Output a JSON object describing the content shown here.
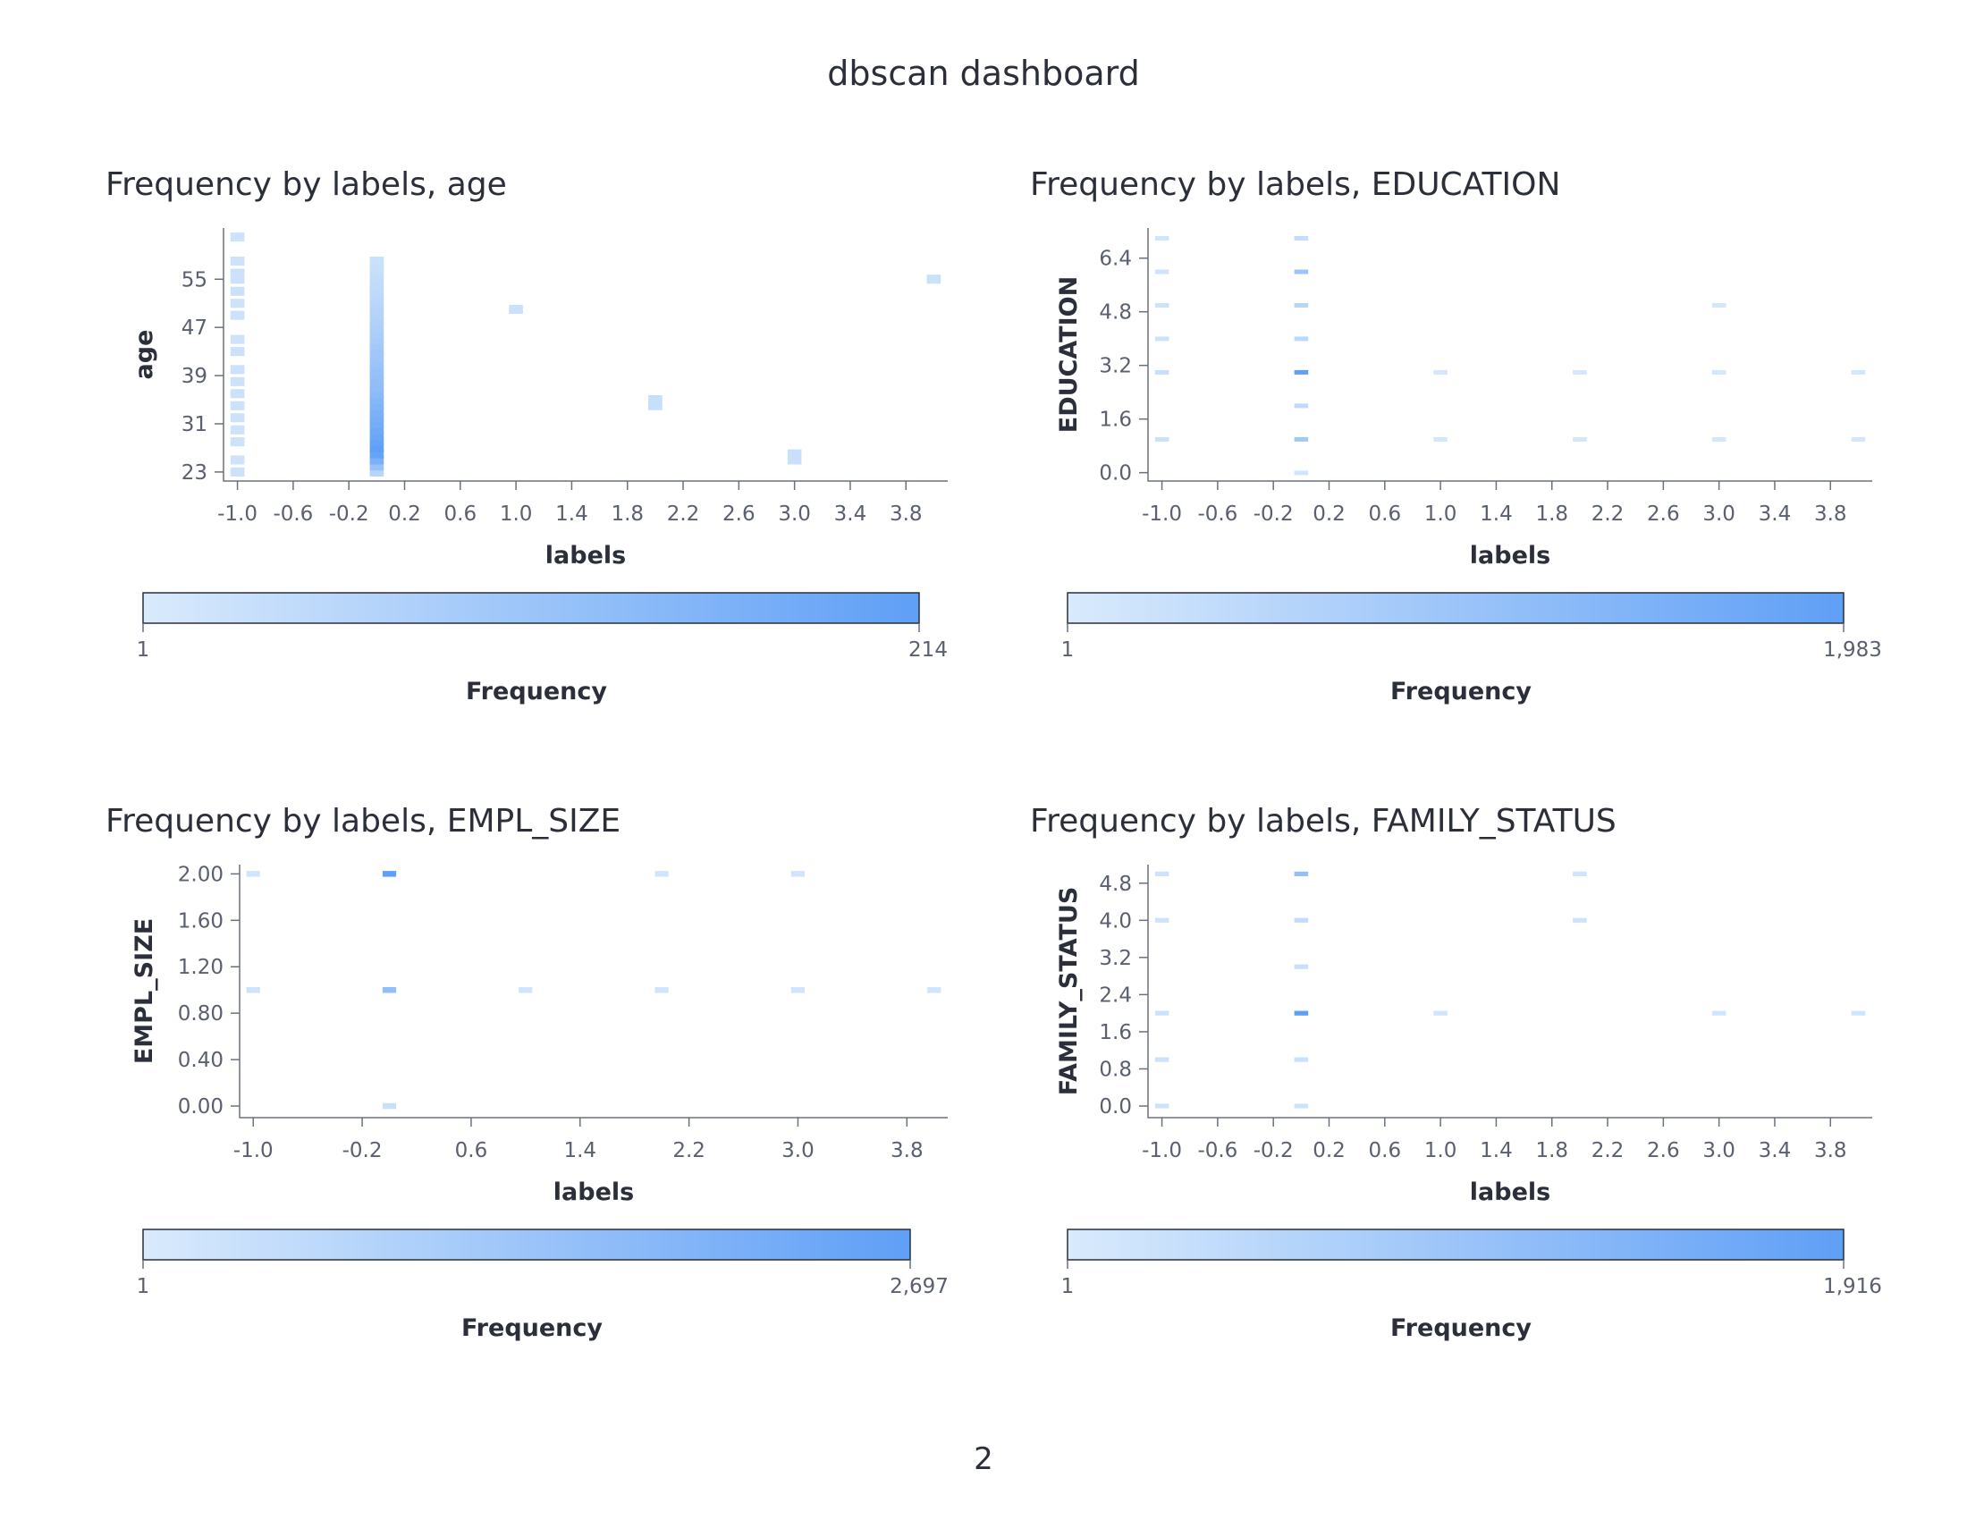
{
  "dashboard": {
    "title": "dbscan dashboard",
    "page_number": "2"
  },
  "colors": {
    "low": "#d9eafc",
    "high": "#5f9ff6",
    "axis": "#6b7080",
    "text": "#2b2f3a"
  },
  "chart_data": [
    {
      "type": "heatmap",
      "title": "Frequency by labels, age",
      "xlabel": "labels",
      "ylabel": "age",
      "x_ticks": [
        "-1.0",
        "-0.6",
        "-0.2",
        "0.2",
        "0.6",
        "1.0",
        "1.4",
        "1.8",
        "2.2",
        "2.6",
        "3.0",
        "3.4",
        "3.8"
      ],
      "y_ticks": [
        "23",
        "31",
        "39",
        "47",
        "55"
      ],
      "xlim": [
        -1.1,
        4.1
      ],
      "ylim": [
        21.5,
        63.5
      ],
      "cell_width": 0.1,
      "cell_height": 1.5,
      "cells": [
        [
          -1,
          23,
          12
        ],
        [
          -1,
          25,
          10
        ],
        [
          -1,
          28,
          12
        ],
        [
          -1,
          30,
          10
        ],
        [
          -1,
          32,
          12
        ],
        [
          -1,
          34,
          12
        ],
        [
          -1,
          36,
          12
        ],
        [
          -1,
          38,
          10
        ],
        [
          -1,
          40,
          12
        ],
        [
          -1,
          43,
          12
        ],
        [
          -1,
          45,
          10
        ],
        [
          -1,
          49,
          12
        ],
        [
          -1,
          51,
          10
        ],
        [
          -1,
          53,
          14
        ],
        [
          -1,
          55,
          12
        ],
        [
          -1,
          56,
          12
        ],
        [
          -1,
          58,
          10
        ],
        [
          -1,
          62,
          10
        ],
        [
          0,
          23,
          40
        ],
        [
          0,
          24,
          95
        ],
        [
          0,
          25,
          150
        ],
        [
          0,
          26,
          195
        ],
        [
          0,
          27,
          214
        ],
        [
          0,
          28,
          200
        ],
        [
          0,
          29,
          185
        ],
        [
          0,
          30,
          175
        ],
        [
          0,
          31,
          168
        ],
        [
          0,
          32,
          160
        ],
        [
          0,
          33,
          150
        ],
        [
          0,
          34,
          140
        ],
        [
          0,
          35,
          130
        ],
        [
          0,
          36,
          120
        ],
        [
          0,
          37,
          110
        ],
        [
          0,
          38,
          105
        ],
        [
          0,
          39,
          100
        ],
        [
          0,
          40,
          95
        ],
        [
          0,
          41,
          88
        ],
        [
          0,
          42,
          82
        ],
        [
          0,
          43,
          78
        ],
        [
          0,
          44,
          72
        ],
        [
          0,
          45,
          66
        ],
        [
          0,
          46,
          60
        ],
        [
          0,
          47,
          55
        ],
        [
          0,
          48,
          50
        ],
        [
          0,
          49,
          46
        ],
        [
          0,
          50,
          42
        ],
        [
          0,
          51,
          38
        ],
        [
          0,
          52,
          34
        ],
        [
          0,
          53,
          30
        ],
        [
          0,
          54,
          28
        ],
        [
          0,
          55,
          25
        ],
        [
          0,
          56,
          22
        ],
        [
          0,
          57,
          18
        ],
        [
          0,
          58,
          14
        ],
        [
          1,
          50,
          14
        ],
        [
          2,
          35,
          18
        ],
        [
          2,
          34,
          18
        ],
        [
          3,
          25,
          16
        ],
        [
          3,
          26,
          16
        ],
        [
          4,
          55,
          14
        ]
      ],
      "color_range": [
        1,
        214
      ],
      "legend": {
        "title": "Frequency",
        "min_label": "1",
        "max_label": "214"
      }
    },
    {
      "type": "heatmap",
      "title": "Frequency by labels, EDUCATION",
      "xlabel": "labels",
      "ylabel": "EDUCATION",
      "x_ticks": [
        "-1.0",
        "-0.6",
        "-0.2",
        "0.2",
        "0.6",
        "1.0",
        "1.4",
        "1.8",
        "2.2",
        "2.6",
        "3.0",
        "3.4",
        "3.8"
      ],
      "y_ticks": [
        "0.0",
        "1.6",
        "3.2",
        "4.8",
        "6.4"
      ],
      "xlim": [
        -1.1,
        4.1
      ],
      "ylim": [
        -0.25,
        7.3
      ],
      "cell_width": 0.1,
      "cell_height": 0.12,
      "cells": [
        [
          -1,
          1,
          120
        ],
        [
          -1,
          3,
          150
        ],
        [
          -1,
          4,
          90
        ],
        [
          -1,
          5,
          80
        ],
        [
          -1,
          6,
          70
        ],
        [
          -1,
          7,
          50
        ],
        [
          0,
          0,
          60
        ],
        [
          0,
          1,
          700
        ],
        [
          0,
          2,
          250
        ],
        [
          0,
          3,
          1983
        ],
        [
          0,
          4,
          300
        ],
        [
          0,
          5,
          350
        ],
        [
          0,
          6,
          800
        ],
        [
          0,
          7,
          200
        ],
        [
          1,
          1,
          40
        ],
        [
          1,
          3,
          40
        ],
        [
          2,
          1,
          40
        ],
        [
          2,
          3,
          40
        ],
        [
          3,
          1,
          40
        ],
        [
          3,
          3,
          40
        ],
        [
          3,
          5,
          40
        ],
        [
          4,
          1,
          40
        ],
        [
          4,
          3,
          40
        ]
      ],
      "color_range": [
        1,
        1983
      ],
      "legend": {
        "title": "Frequency",
        "min_label": "1",
        "max_label": "1,983"
      }
    },
    {
      "type": "heatmap",
      "title": "Frequency by labels, EMPL_SIZE",
      "xlabel": "labels",
      "ylabel": "EMPL_SIZE",
      "x_ticks": [
        "-1.0",
        "-0.2",
        "0.6",
        "1.4",
        "2.2",
        "3.0",
        "3.8"
      ],
      "y_ticks": [
        "0.00",
        "0.40",
        "0.80",
        "1.20",
        "1.60",
        "2.00"
      ],
      "xlim": [
        -1.1,
        4.1
      ],
      "ylim": [
        -0.1,
        2.08
      ],
      "cell_width": 0.1,
      "cell_height": 0.05,
      "cells": [
        [
          -1,
          1,
          100
        ],
        [
          -1,
          2,
          80
        ],
        [
          0,
          0,
          200
        ],
        [
          0,
          1,
          1300
        ],
        [
          0,
          2,
          2697
        ],
        [
          1,
          1,
          80
        ],
        [
          2,
          1,
          80
        ],
        [
          2,
          2,
          80
        ],
        [
          3,
          1,
          80
        ],
        [
          3,
          2,
          80
        ],
        [
          4,
          1,
          80
        ]
      ],
      "color_range": [
        1,
        2697
      ],
      "legend": {
        "title": "Frequency",
        "min_label": "1",
        "max_label": "2,697"
      }
    },
    {
      "type": "heatmap",
      "title": "Frequency by labels, FAMILY_STATUS",
      "xlabel": "labels",
      "ylabel": "FAMILY_STATUS",
      "x_ticks": [
        "-1.0",
        "-0.6",
        "-0.2",
        "0.2",
        "0.6",
        "1.0",
        "1.4",
        "1.8",
        "2.2",
        "2.6",
        "3.0",
        "3.4",
        "3.8"
      ],
      "y_ticks": [
        "0.0",
        "0.8",
        "1.6",
        "2.4",
        "3.2",
        "4.0",
        "4.8"
      ],
      "xlim": [
        -1.1,
        4.1
      ],
      "ylim": [
        -0.25,
        5.2
      ],
      "cell_width": 0.1,
      "cell_height": 0.1,
      "cells": [
        [
          -1,
          0,
          80
        ],
        [
          -1,
          1,
          80
        ],
        [
          -1,
          2,
          100
        ],
        [
          -1,
          4,
          80
        ],
        [
          -1,
          5,
          80
        ],
        [
          0,
          0,
          80
        ],
        [
          0,
          1,
          120
        ],
        [
          0,
          2,
          1916
        ],
        [
          0,
          3,
          150
        ],
        [
          0,
          4,
          200
        ],
        [
          0,
          5,
          900
        ],
        [
          1,
          2,
          60
        ],
        [
          2,
          4,
          80
        ],
        [
          2,
          5,
          60
        ],
        [
          3,
          2,
          60
        ],
        [
          4,
          2,
          60
        ]
      ],
      "color_range": [
        1,
        1916
      ],
      "legend": {
        "title": "Frequency",
        "min_label": "1",
        "max_label": "1,916"
      }
    }
  ]
}
